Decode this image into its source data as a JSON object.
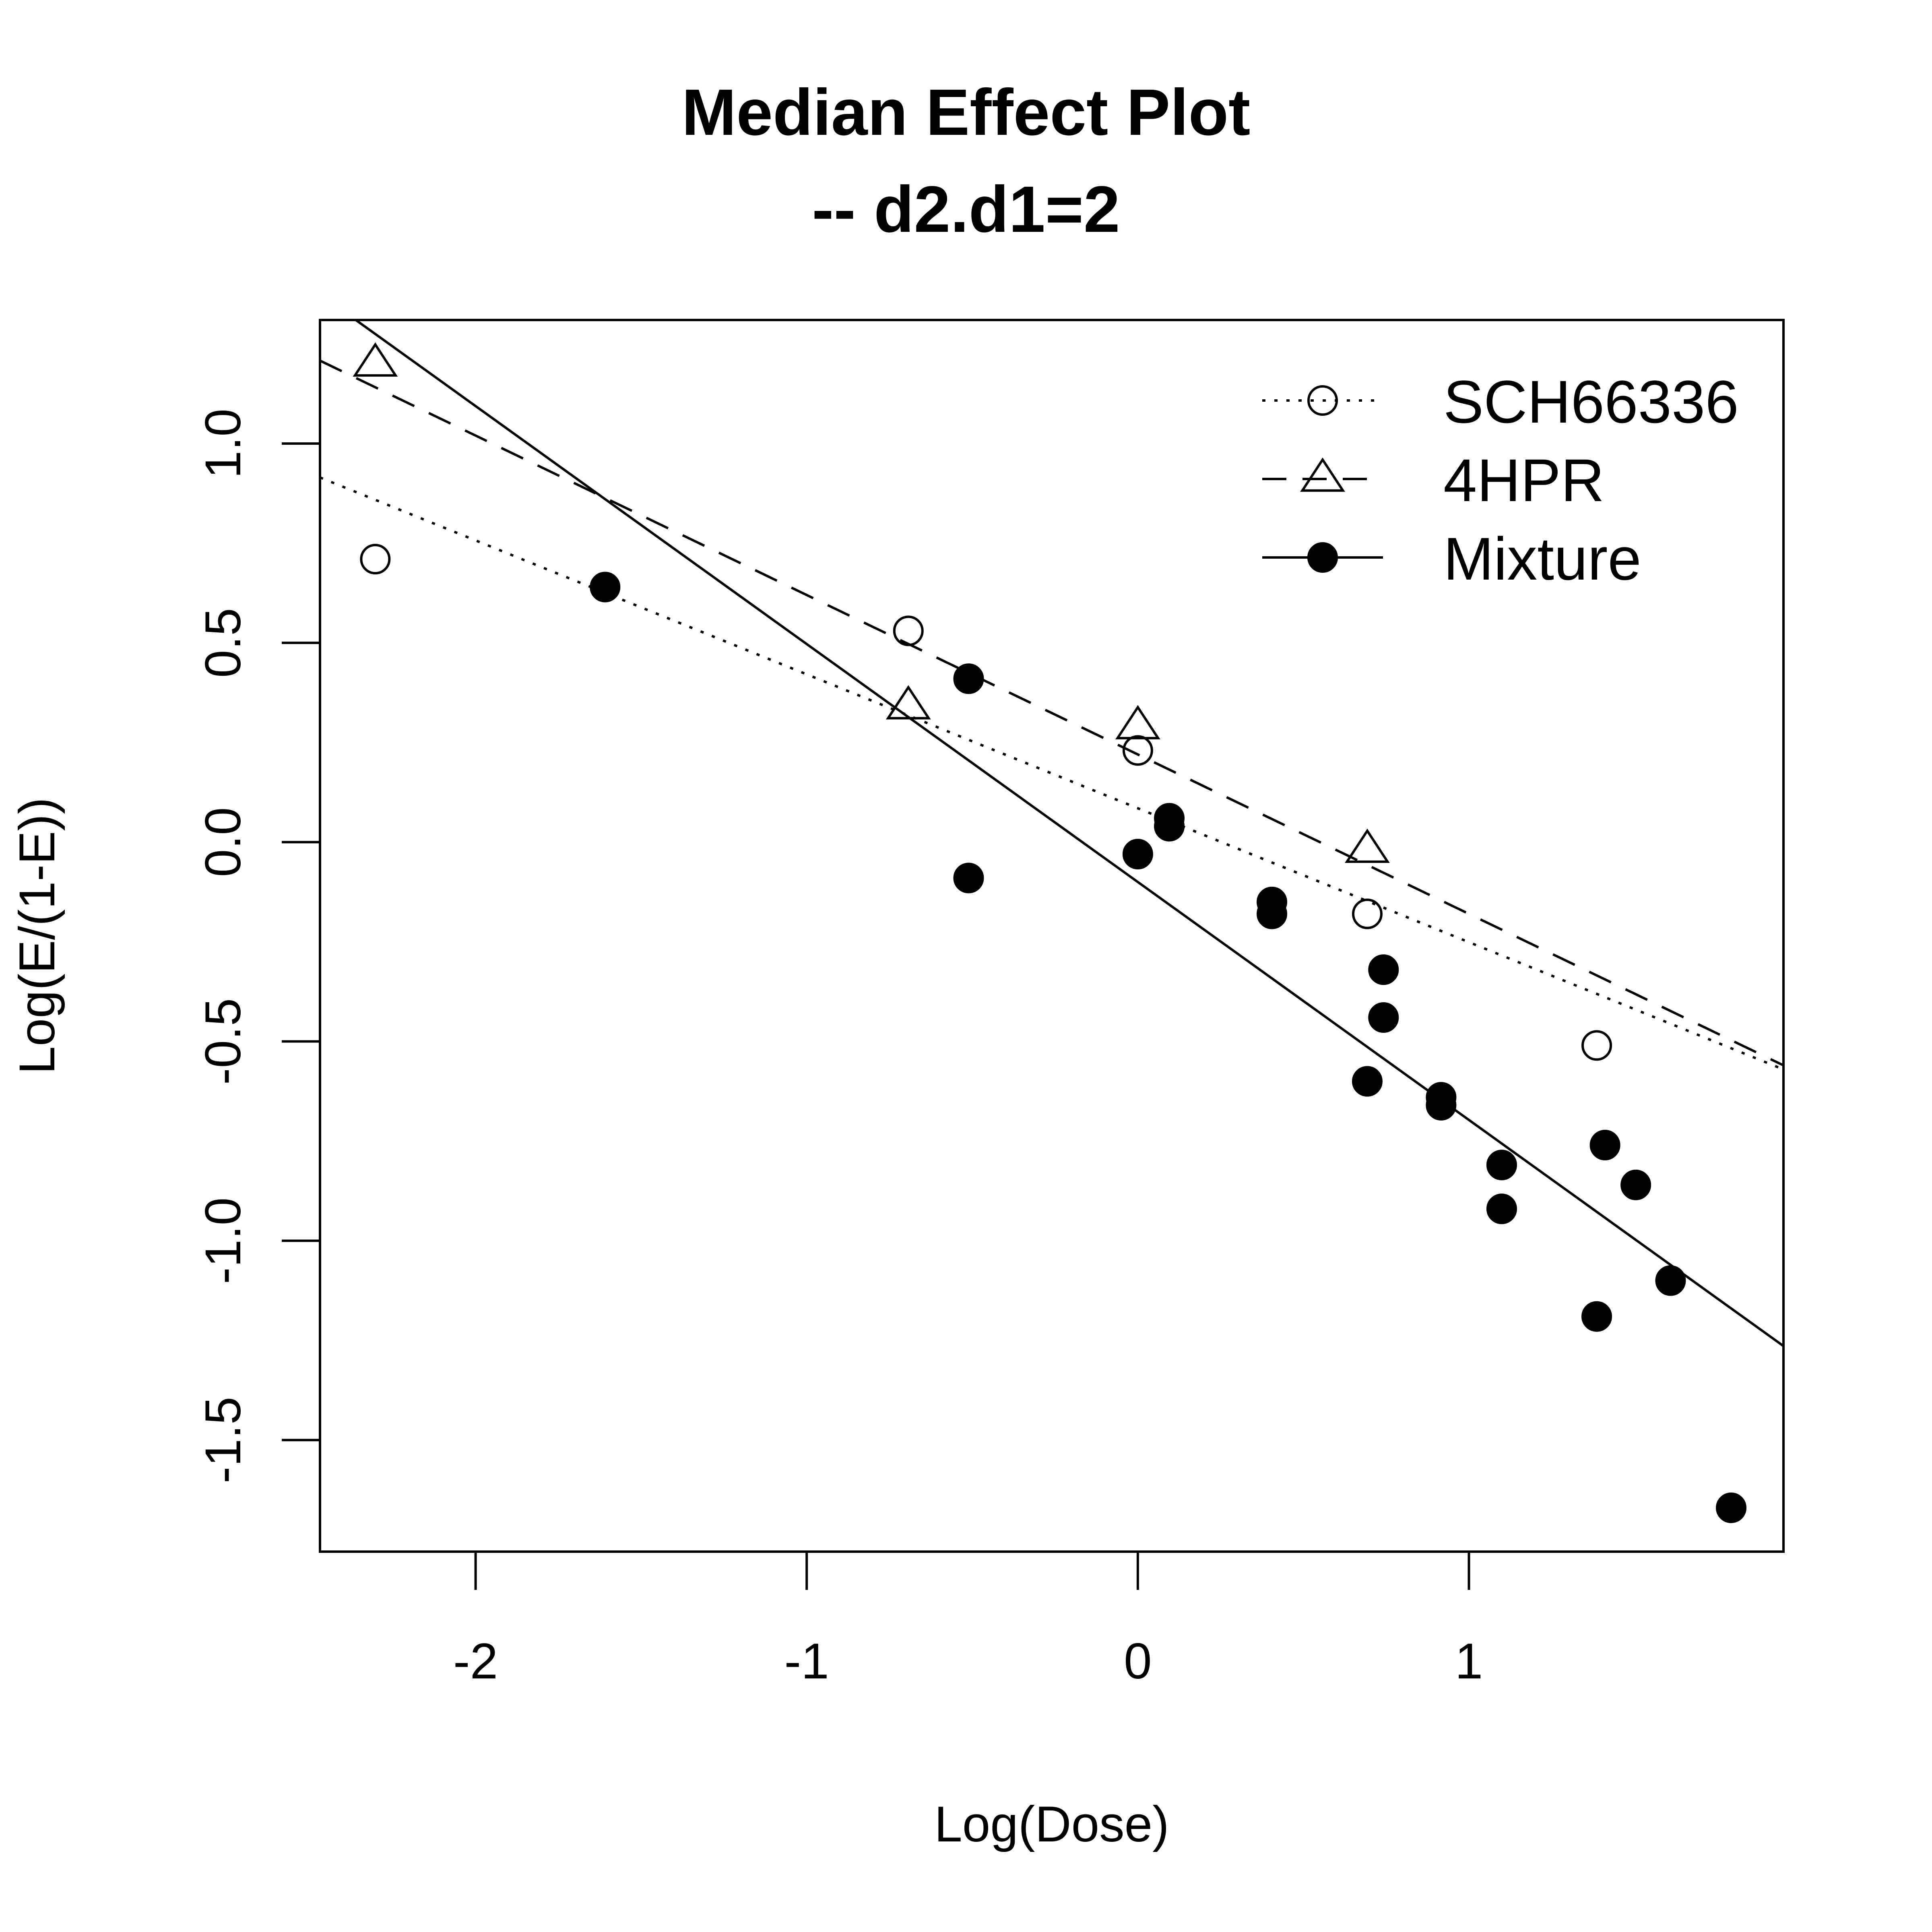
{
  "chart_data": {
    "type": "scatter",
    "title": "Median Effect Plot",
    "subtitle": "-- d2.d1=2",
    "xlabel": "Log(Dose)",
    "ylabel": "Log(E/(1-E))",
    "xlim": [
      -2.47,
      1.95
    ],
    "ylim": [
      -1.78,
      1.31
    ],
    "xticks": [
      -2,
      -1,
      0,
      1
    ],
    "yticks": [
      -1.5,
      -1.0,
      -0.5,
      0.0,
      0.5,
      1.0
    ],
    "xtick_labels": [
      "-2",
      "-1",
      "0",
      "1"
    ],
    "ytick_labels": [
      "-1.5",
      "-1.0",
      "-0.5",
      "0.0",
      "0.5",
      "1.0"
    ],
    "grid": false,
    "legend_position": "top-right",
    "series": [
      {
        "name": "SCH66336",
        "marker": "open-circle",
        "line": "dotted",
        "points": [
          {
            "x": -2.303,
            "y": 0.71
          },
          {
            "x": -0.693,
            "y": 0.53
          },
          {
            "x": 0.0,
            "y": 0.23
          },
          {
            "x": 0.693,
            "y": -0.18
          },
          {
            "x": 1.386,
            "y": -0.51
          }
        ],
        "fit": {
          "slope": -0.336,
          "intercept": 0.085
        }
      },
      {
        "name": "4HPR",
        "marker": "open-triangle",
        "line": "dashed",
        "points": [
          {
            "x": -2.303,
            "y": 1.2
          },
          {
            "x": -0.693,
            "y": 0.34
          },
          {
            "x": 0.0,
            "y": 0.29
          },
          {
            "x": 0.693,
            "y": -0.02
          }
        ],
        "fit": {
          "slope": -0.4,
          "intercept": 0.22
        }
      },
      {
        "name": "Mixture",
        "marker": "filled-circle",
        "line": "solid",
        "points": [
          {
            "x": -1.609,
            "y": 0.64
          },
          {
            "x": -0.511,
            "y": 0.41
          },
          {
            "x": -0.511,
            "y": -0.09
          },
          {
            "x": 0.0,
            "y": -0.03
          },
          {
            "x": 0.095,
            "y": 0.06
          },
          {
            "x": 0.095,
            "y": 0.04
          },
          {
            "x": 0.405,
            "y": -0.15
          },
          {
            "x": 0.405,
            "y": -0.18
          },
          {
            "x": 0.693,
            "y": -0.6
          },
          {
            "x": 0.742,
            "y": -0.32
          },
          {
            "x": 0.742,
            "y": -0.44
          },
          {
            "x": 0.916,
            "y": -0.64
          },
          {
            "x": 0.916,
            "y": -0.66
          },
          {
            "x": 1.099,
            "y": -0.81
          },
          {
            "x": 1.099,
            "y": -0.92
          },
          {
            "x": 1.386,
            "y": -1.19
          },
          {
            "x": 1.411,
            "y": -0.76
          },
          {
            "x": 1.504,
            "y": -0.86
          },
          {
            "x": 1.609,
            "y": -1.1
          },
          {
            "x": 1.792,
            "y": -1.67
          }
        ],
        "fit": {
          "slope": -0.597,
          "intercept": -0.1
        }
      }
    ]
  }
}
